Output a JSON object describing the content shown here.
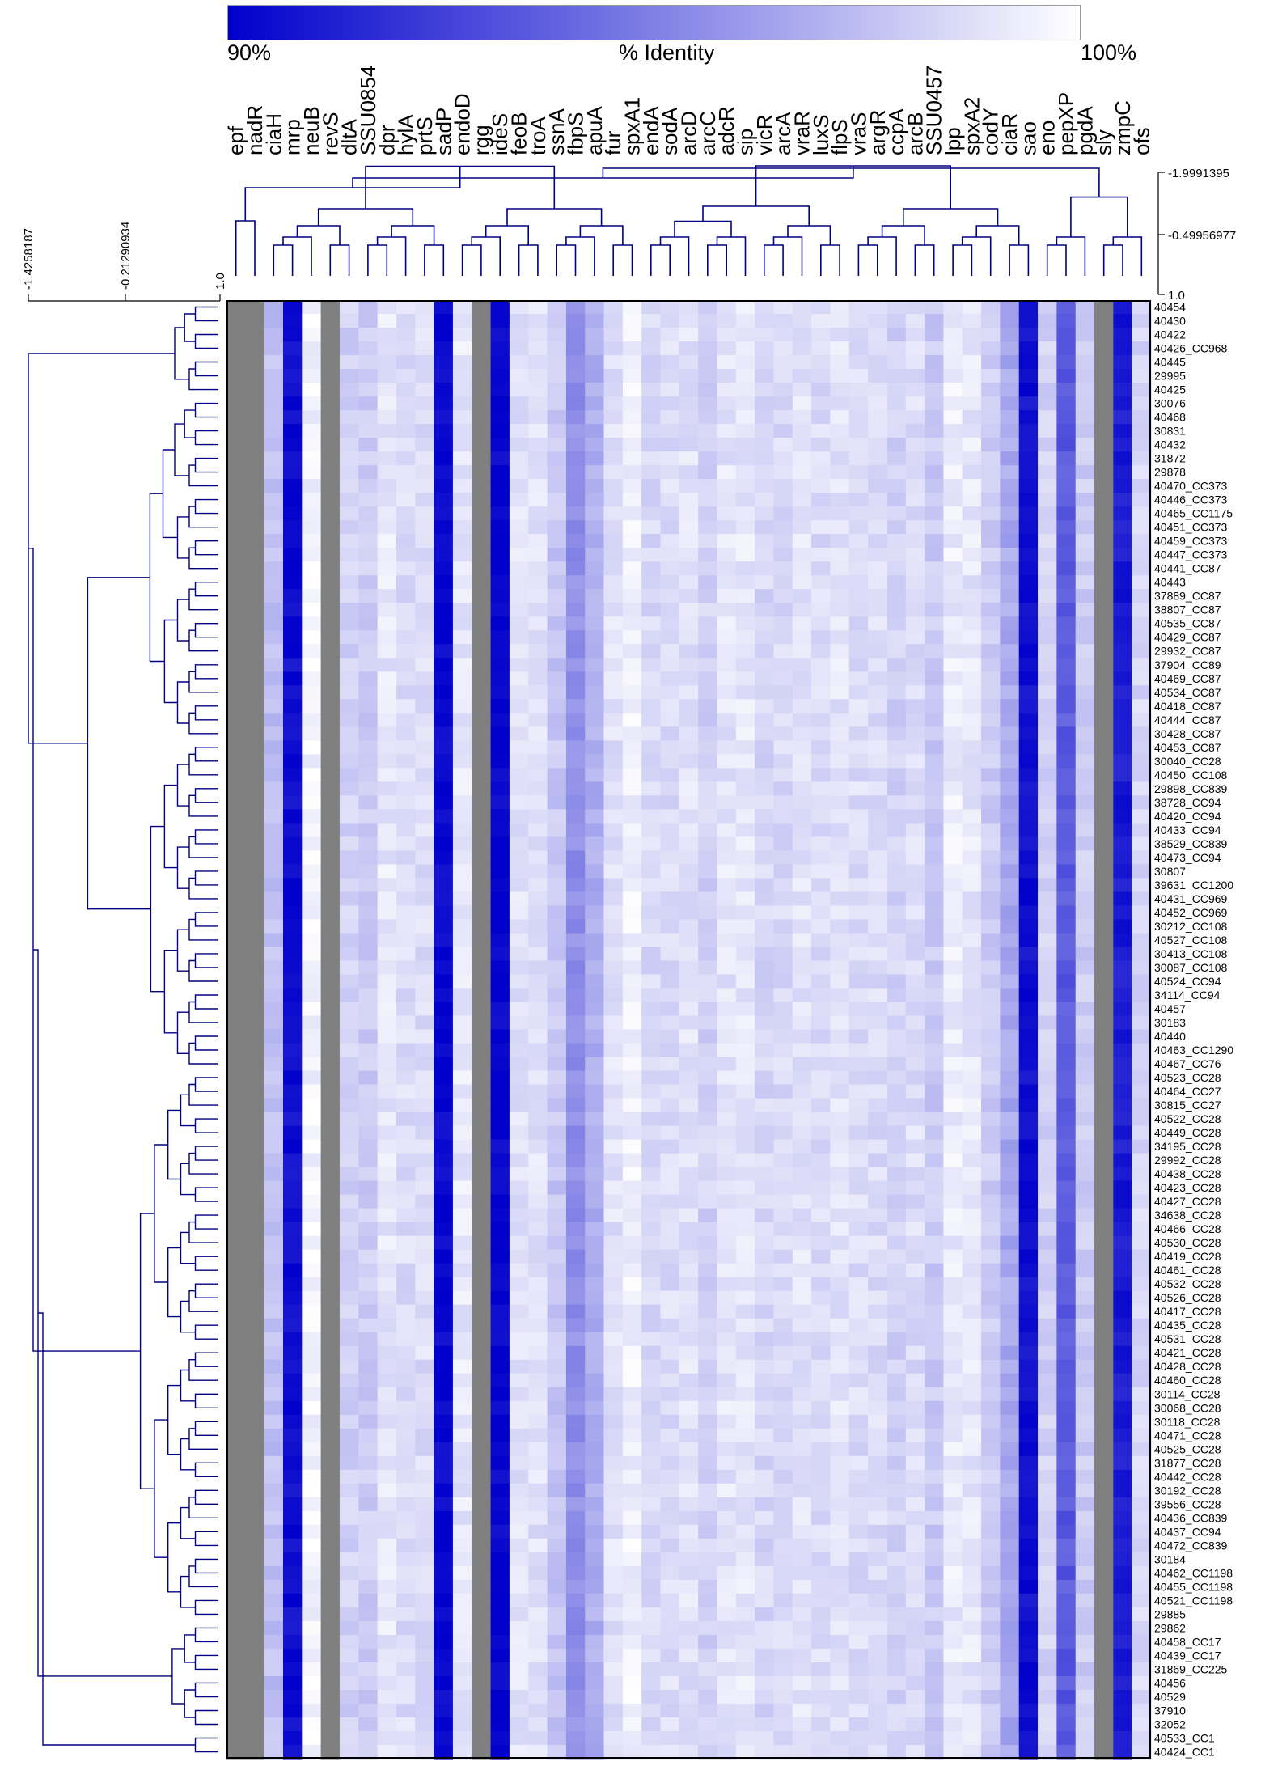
{
  "colorbar": {
    "title": "% Identity",
    "low_label": "90%",
    "high_label": "100%",
    "low_color": "#0000cc",
    "high_color": "#ffffff",
    "missing_color": "#808080"
  },
  "chart_data": {
    "type": "heatmap",
    "genes": [
      "epf",
      "nadR",
      "ciaH",
      "mrp",
      "neuB",
      "revS",
      "dltA",
      "SSU0854",
      "dpr",
      "hylA",
      "prtS",
      "sadP",
      "endoD",
      "rgg",
      "ideS",
      "feoB",
      "troA",
      "ssnA",
      "fbpS",
      "apuA",
      "fur",
      "spxA1",
      "endA",
      "sodA",
      "arcD",
      "arcC",
      "adcR",
      "sip",
      "vicR",
      "arcA",
      "vraR",
      "luxS",
      "flpS",
      "vraS",
      "argR",
      "ccpA",
      "arcB",
      "SSU0457",
      "lpp",
      "spxA2",
      "codY",
      "ciaR",
      "sao",
      "eno",
      "pepXP",
      "pgdA",
      "sly",
      "zmpC",
      "ofs"
    ],
    "strains": [
      "40454",
      "40430",
      "40422",
      "40426_CC968",
      "40445",
      "29995",
      "40425",
      "30076",
      "40468",
      "30831",
      "40432",
      "31872",
      "29878",
      "40470_CC373",
      "40446_CC373",
      "40465_CC1175",
      "40451_CC373",
      "40459_CC373",
      "40447_CC373",
      "40441_CC87",
      "40443",
      "37889_CC87",
      "38807_CC87",
      "40535_CC87",
      "40429_CC87",
      "29932_CC87",
      "37904_CC89",
      "40469_CC87",
      "40534_CC87",
      "40418_CC87",
      "40444_CC87",
      "30428_CC87",
      "40453_CC87",
      "30040_CC28",
      "40450_CC108",
      "29898_CC839",
      "38728_CC94",
      "40420_CC94",
      "40433_CC94",
      "38529_CC839",
      "40473_CC94",
      "30807",
      "39631_CC1200",
      "40431_CC969",
      "40452_CC969",
      "30212_CC108",
      "40527_CC108",
      "30413_CC108",
      "30087_CC108",
      "40524_CC94",
      "34114_CC94",
      "40457",
      "30183",
      "40440",
      "40463_CC1290",
      "40467_CC76",
      "40523_CC28",
      "40464_CC27",
      "30815_CC27",
      "40522_CC28",
      "40449_CC28",
      "34195_CC28",
      "29992_CC28",
      "40438_CC28",
      "40423_CC28",
      "40427_CC28",
      "34638_CC28",
      "40466_CC28",
      "40530_CC28",
      "40419_CC28",
      "40461_CC28",
      "40532_CC28",
      "40526_CC28",
      "40417_CC28",
      "40435_CC28",
      "40531_CC28",
      "40421_CC28",
      "40428_CC28",
      "40460_CC28",
      "30114_CC28",
      "30068_CC28",
      "30118_CC28",
      "40471_CC28",
      "40525_CC28",
      "31877_CC28",
      "40442_CC28",
      "30192_CC28",
      "39556_CC28",
      "40436_CC839",
      "40437_CC94",
      "40472_CC839",
      "30184",
      "40462_CC1198",
      "40455_CC1198",
      "40521_CC1198",
      "29885",
      "29862",
      "40458_CC17",
      "40439_CC17",
      "31869_CC225",
      "40456",
      "40529",
      "37910",
      "32052",
      "40533_CC1",
      "40424_CC1"
    ],
    "value_range": [
      90,
      100
    ],
    "value_units": "% identity",
    "missing_value": null,
    "column_dendrogram_axis": {
      "ticks": [
        "-1.9991395",
        "-0.49956977",
        "1.0"
      ]
    },
    "row_dendrogram_axis": {
      "ticks": [
        "-1.4258187",
        "-0.21290934",
        "1.0"
      ]
    },
    "gene_profiles": [
      {
        "gene": "epf",
        "typical": null
      },
      {
        "gene": "nadR",
        "typical": null
      },
      {
        "gene": "ciaH",
        "typical": 97.5
      },
      {
        "gene": "mrp",
        "typical": 90.5
      },
      {
        "gene": "neuB",
        "typical": 99.6
      },
      {
        "gene": "revS",
        "typical": null
      },
      {
        "gene": "dltA",
        "typical": 98.2
      },
      {
        "gene": "SSU0854",
        "typical": 98.0
      },
      {
        "gene": "dpr",
        "typical": 99.0
      },
      {
        "gene": "hylA",
        "typical": 98.6
      },
      {
        "gene": "prtS",
        "typical": 98.6
      },
      {
        "gene": "sadP",
        "typical": 90.2
      },
      {
        "gene": "endoD",
        "typical": 99.0
      },
      {
        "gene": "rgg",
        "typical": null
      },
      {
        "gene": "ideS",
        "typical": 90.2
      },
      {
        "gene": "feoB",
        "typical": 98.8
      },
      {
        "gene": "troA",
        "typical": 98.8
      },
      {
        "gene": "ssnA",
        "typical": 97.8
      },
      {
        "gene": "fbpS",
        "typical": 95.6
      },
      {
        "gene": "apuA",
        "typical": 96.8
      },
      {
        "gene": "fur",
        "typical": 98.8
      },
      {
        "gene": "spxA1",
        "typical": 99.4
      },
      {
        "gene": "endA",
        "typical": 98.5
      },
      {
        "gene": "sodA",
        "typical": 98.6
      },
      {
        "gene": "arcD",
        "typical": 98.8
      },
      {
        "gene": "arcC",
        "typical": 98.2
      },
      {
        "gene": "adcR",
        "typical": 98.9
      },
      {
        "gene": "sip",
        "typical": 99.0
      },
      {
        "gene": "vicR",
        "typical": 98.4
      },
      {
        "gene": "arcA",
        "typical": 98.5
      },
      {
        "gene": "vraR",
        "typical": 98.9
      },
      {
        "gene": "luxS",
        "typical": 98.6
      },
      {
        "gene": "flpS",
        "typical": 98.9
      },
      {
        "gene": "vraS",
        "typical": 98.6
      },
      {
        "gene": "argR",
        "typical": 98.6
      },
      {
        "gene": "ccpA",
        "typical": 98.2
      },
      {
        "gene": "arcB",
        "typical": 98.6
      },
      {
        "gene": "SSU0457",
        "typical": 97.9
      },
      {
        "gene": "lpp",
        "typical": 99.2
      },
      {
        "gene": "spxA2",
        "typical": 99.0
      },
      {
        "gene": "codY",
        "typical": 98.0
      },
      {
        "gene": "ciaR",
        "typical": 96.6
      },
      {
        "gene": "sao",
        "typical": 90.6
      },
      {
        "gene": "eno",
        "typical": 98.2
      },
      {
        "gene": "pepXP",
        "typical": 93.5
      },
      {
        "gene": "pgdA",
        "typical": 98.0
      },
      {
        "gene": "sly",
        "typical": null
      },
      {
        "gene": "zmpC",
        "typical": 91.0
      },
      {
        "gene": "ofs",
        "typical": 98.4
      }
    ]
  }
}
